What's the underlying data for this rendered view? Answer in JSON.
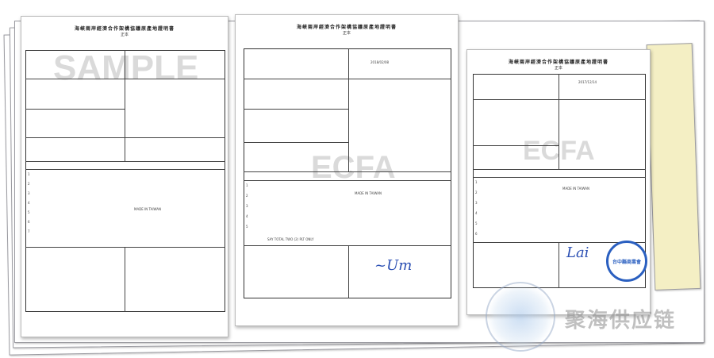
{
  "documents": [
    {
      "title": "海峽兩岸經濟合作架構協議原產地證明書",
      "subtitle": "正本",
      "watermark": "SAMPLE",
      "rows": [
        "1",
        "2",
        "3",
        "4",
        "5",
        "6",
        "7"
      ],
      "marks": "MADE IN TAIWAN"
    },
    {
      "title": "海峽兩岸經濟合作架構協議原產地證明書",
      "subtitle": "正本",
      "watermark": "ECFA",
      "date": "2018/02/08",
      "rows": [
        "1",
        "2",
        "3",
        "4",
        "5"
      ],
      "marks": "MADE IN TAIWAN",
      "total": "SAY TOTAL TWO (2) PLT ONLY"
    },
    {
      "title": "海峽兩岸經濟合作架構協議原產地證明書",
      "subtitle": "正本",
      "watermark": "ECFA",
      "date": "2017/12/14",
      "rows": [
        "1",
        "2",
        "3",
        "4",
        "5",
        "6"
      ],
      "marks": "MADE IN TAIWAN",
      "stamp": "台中縣商業會"
    }
  ],
  "brand": {
    "name": "聚海供应链"
  },
  "colors": {
    "stamp": "#2a5fc0",
    "signature": "#2b4fb3"
  }
}
